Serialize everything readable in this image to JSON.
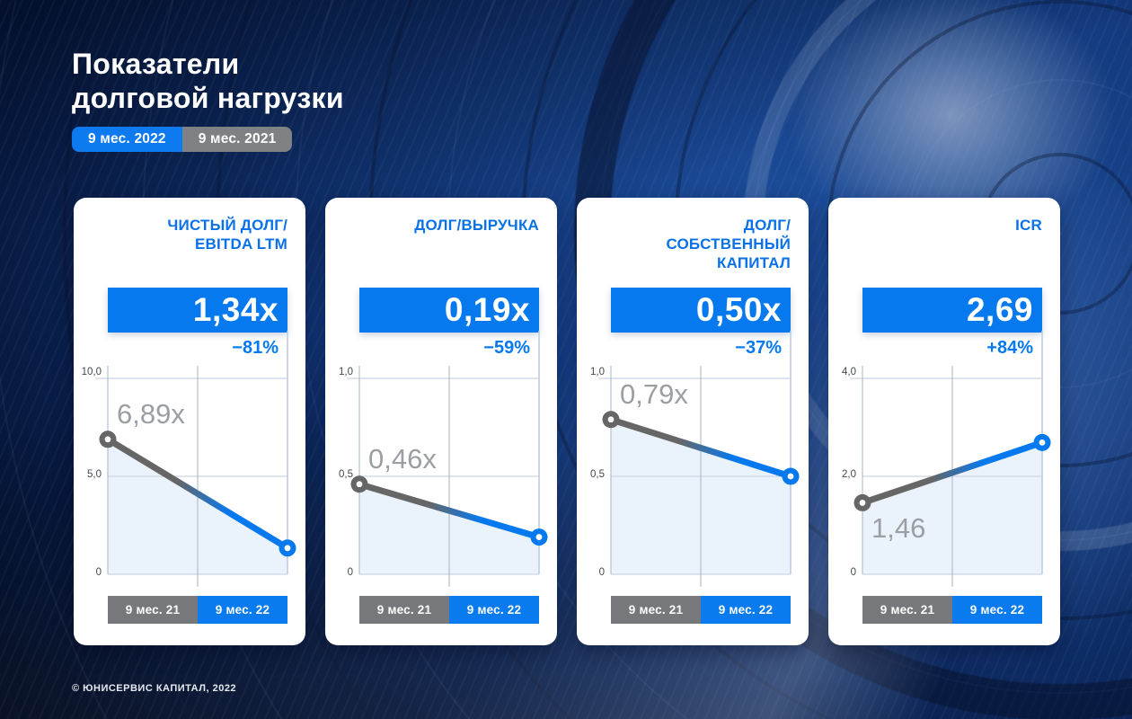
{
  "page": {
    "title_lines": [
      "Показатели",
      "долговой нагрузки"
    ],
    "legend": {
      "items": [
        {
          "label": "9 мес. 2022",
          "color": "#0d7af0"
        },
        {
          "label": "9 мес. 2021",
          "color": "#808184"
        }
      ]
    },
    "footer": "© ЮНИСЕРВИС КАПИТАЛ, 2022"
  },
  "colors": {
    "accent_blue": "#0679ef",
    "series_gray": "#666666",
    "area_fill": "#eaf2fc",
    "grid_horizontal": "#ccd5e2",
    "grid_vertical": "#aab4c3",
    "grid_right": "#bccbe8",
    "card_bg": "#ffffff",
    "background_navy": "#0a2a66",
    "point_label_gray": "#9b9ea3"
  },
  "chart_data": [
    {
      "type": "line",
      "title_lines": [
        "ЧИСТЫЙ ДОЛГ/",
        "EBITDA LTM"
      ],
      "headline": "1,34x",
      "change": "−81%",
      "categories": [
        "9 мес. 21",
        "9 мес. 22"
      ],
      "values": [
        6.89,
        1.34
      ],
      "point_label": "6,89x",
      "point_label_position": "above",
      "ylim": [
        0,
        10
      ],
      "yticks": [
        "10,0",
        "5,0",
        "0"
      ],
      "series_colors": [
        "#666666",
        "#0679ef"
      ],
      "grid": true,
      "legend_position": "none"
    },
    {
      "type": "line",
      "title_lines": [
        "ДОЛГ/ВЫРУЧКА"
      ],
      "headline": "0,19x",
      "change": "−59%",
      "categories": [
        "9 мес. 21",
        "9 мес. 22"
      ],
      "values": [
        0.46,
        0.19
      ],
      "point_label": "0,46x",
      "point_label_position": "above",
      "ylim": [
        0,
        1
      ],
      "yticks": [
        "1,0",
        "0,5",
        "0"
      ],
      "series_colors": [
        "#666666",
        "#0679ef"
      ],
      "grid": true,
      "legend_position": "none"
    },
    {
      "type": "line",
      "title_lines": [
        "ДОЛГ/",
        "СОБСТВЕННЫЙ",
        "КАПИТАЛ"
      ],
      "headline": "0,50x",
      "change": "−37%",
      "categories": [
        "9 мес. 21",
        "9 мес. 22"
      ],
      "values": [
        0.79,
        0.5
      ],
      "point_label": "0,79x",
      "point_label_position": "above",
      "ylim": [
        0,
        1
      ],
      "yticks": [
        "1,0",
        "0,5",
        "0"
      ],
      "series_colors": [
        "#666666",
        "#0679ef"
      ],
      "grid": true,
      "legend_position": "none"
    },
    {
      "type": "line",
      "title_lines": [
        "ICR"
      ],
      "headline": "2,69",
      "change": "+84%",
      "categories": [
        "9 мес. 21",
        "9 мес. 22"
      ],
      "values": [
        1.46,
        2.69
      ],
      "point_label": "1,46",
      "point_label_position": "below",
      "ylim": [
        0,
        4
      ],
      "yticks": [
        "4,0",
        "2,0",
        "0"
      ],
      "series_colors": [
        "#666666",
        "#0679ef"
      ],
      "grid": true,
      "legend_position": "none"
    }
  ]
}
